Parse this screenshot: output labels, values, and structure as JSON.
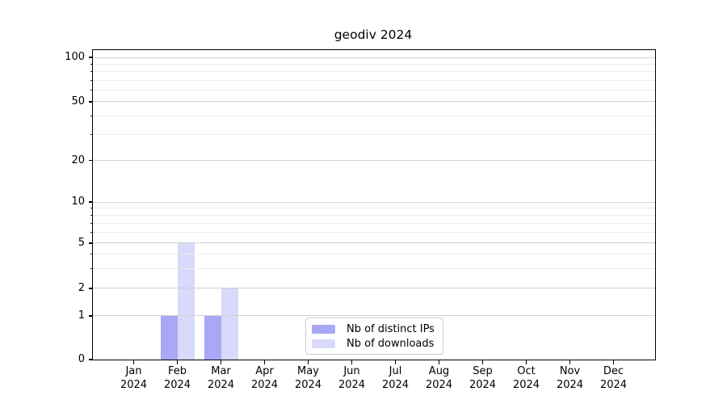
{
  "title": "geodiv 2024",
  "chart_data": {
    "type": "bar",
    "title": "geodiv 2024",
    "year": "2024",
    "categories": [
      "Jan",
      "Feb",
      "Mar",
      "Apr",
      "May",
      "Jun",
      "Jul",
      "Aug",
      "Sep",
      "Oct",
      "Nov",
      "Dec"
    ],
    "series": [
      {
        "key": "distinct-ips",
        "name": "Nb of distinct IPs",
        "color": "#0000E6",
        "opacity": 0.34,
        "swatch_hex": "#A9A9F6",
        "values": [
          0,
          1,
          1,
          0,
          0,
          0,
          0,
          0,
          0,
          0,
          0,
          0
        ]
      },
      {
        "key": "downloads",
        "name": "Nb of downloads",
        "color": "#0000E6",
        "opacity": 0.15,
        "swatch_hex": "#D9D9FB",
        "values": [
          0,
          5,
          2,
          0,
          0,
          0,
          0,
          0,
          0,
          0,
          0,
          0
        ]
      }
    ],
    "y_axis": {
      "scale": "symlog",
      "major_ticks": [
        0,
        1,
        2,
        5,
        10,
        20,
        50,
        100
      ],
      "minor_ticks": [
        3,
        4,
        6,
        7,
        8,
        9,
        30,
        40,
        60,
        70,
        80,
        90
      ],
      "ylim": [
        0,
        110
      ]
    },
    "x_axis": {
      "tick_label_lines": 2
    },
    "grid": {
      "major_color": "#d0d0d0",
      "minor_color": "#ececec",
      "orientation": "horizontal"
    },
    "legend": {
      "position": "lower center",
      "entries": [
        "Nb of distinct IPs",
        "Nb of downloads"
      ]
    }
  }
}
